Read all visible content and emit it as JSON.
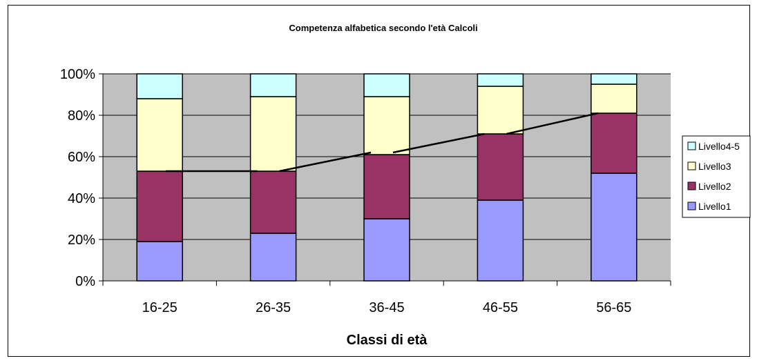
{
  "chart_data": {
    "type": "bar",
    "stacked": true,
    "percent": true,
    "title": "Competenza alfabetica secondo l'età  Calcoli",
    "xlabel": "Classi di età",
    "ylabel": "",
    "ylim": [
      0,
      100
    ],
    "yticks": [
      "0%",
      "20%",
      "40%",
      "60%",
      "80%",
      "100%"
    ],
    "categories": [
      "16-25",
      "26-35",
      "36-45",
      "46-55",
      "56-65"
    ],
    "series": [
      {
        "name": "Livello1",
        "color": "#9999FF",
        "values": [
          19,
          23,
          30,
          39,
          52
        ]
      },
      {
        "name": "Livello2",
        "color": "#993366",
        "values": [
          34,
          30,
          31,
          32,
          29
        ]
      },
      {
        "name": "Livello3",
        "color": "#FFFFCC",
        "values": [
          35,
          36,
          28,
          23,
          14
        ]
      },
      {
        "name": "Livello4-5",
        "color": "#CCFFFF",
        "values": [
          12,
          11,
          11,
          6,
          5
        ]
      }
    ],
    "trend_line": {
      "color": "#000000",
      "values": [
        53,
        53,
        62,
        71,
        81
      ]
    },
    "legend_position": "right",
    "grid": true,
    "plot_background": "#C0C0C0"
  }
}
